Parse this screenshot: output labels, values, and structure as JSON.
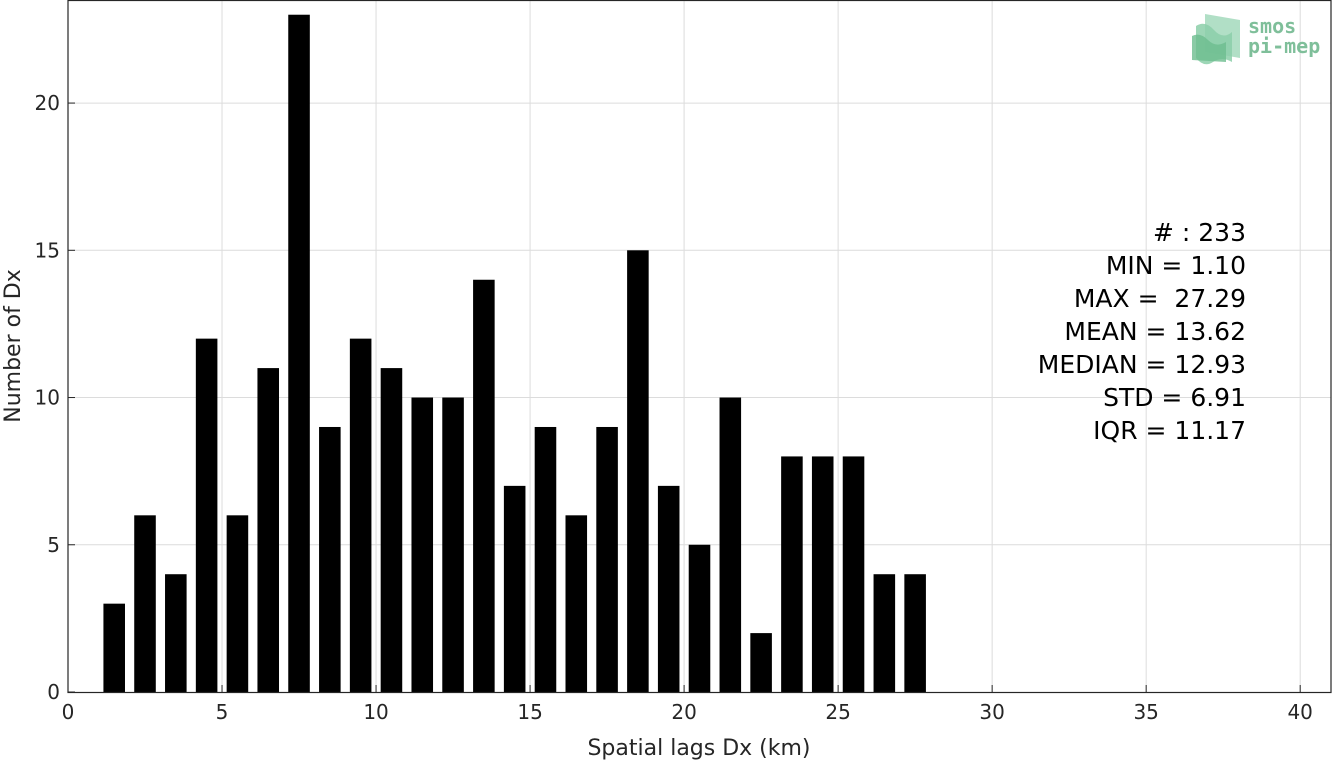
{
  "chart_data": {
    "type": "bar",
    "title": "",
    "xlabel": "Spatial lags Dx (km)",
    "ylabel": "Number of Dx",
    "xlim": [
      0,
      41
    ],
    "ylim": [
      0,
      23.5
    ],
    "xticks": [
      0,
      5,
      10,
      15,
      20,
      25,
      30,
      35,
      40
    ],
    "yticks": [
      0,
      5,
      10,
      15,
      20
    ],
    "grid": true,
    "x": [
      1.5,
      2.5,
      3.5,
      4.5,
      5.5,
      6.5,
      7.5,
      8.5,
      9.5,
      10.5,
      11.5,
      12.5,
      13.5,
      14.5,
      15.5,
      16.5,
      17.5,
      18.5,
      19.5,
      20.5,
      21.5,
      22.5,
      23.5,
      24.5,
      25.5,
      26.5,
      27.5
    ],
    "values": [
      3,
      6,
      4,
      12,
      6,
      11,
      23,
      9,
      12,
      11,
      10,
      10,
      14,
      7,
      9,
      6,
      9,
      15,
      7,
      5,
      10,
      2,
      8,
      8,
      8,
      4,
      4
    ],
    "bar_width": 0.7,
    "bar_color": "#000000",
    "stats": [
      "# : 233",
      "MIN = 1.10",
      "MAX =  27.29",
      "MEAN = 13.62",
      "MEDIAN = 12.93",
      "STD = 6.91",
      "IQR = 11.17"
    ]
  },
  "logo": {
    "line1": "smos",
    "line2": "pi-mep",
    "color": "#7fbf9a"
  }
}
